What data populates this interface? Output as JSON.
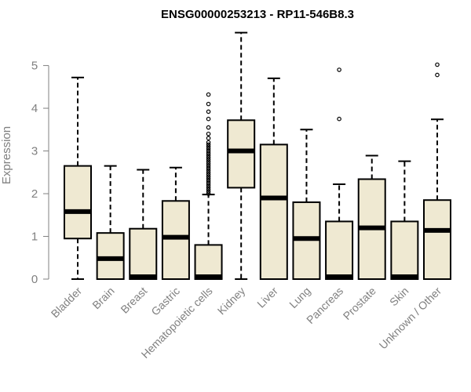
{
  "chart_data": {
    "type": "boxplot",
    "title": "ENSG00000253213 - RP11-546B8.3",
    "xlabel": "",
    "ylabel": "Expression",
    "ylim": [
      0,
      5.8
    ],
    "yticks": [
      0,
      1,
      2,
      3,
      4,
      5
    ],
    "box_fill": "#efe9d2",
    "axis_color": "#808080",
    "categories": [
      "Bladder",
      "Brain",
      "Breast",
      "Gastric",
      "Hematopoietic cells",
      "Kidney",
      "Liver",
      "Lung",
      "Pancreas",
      "Prostate",
      "Skin",
      "Unknown / Other"
    ],
    "boxes": [
      {
        "min": 0,
        "q1": 0.95,
        "median": 1.58,
        "q3": 2.65,
        "max": 4.72,
        "outliers": []
      },
      {
        "min": 0,
        "q1": 0,
        "median": 0.48,
        "q3": 1.08,
        "max": 2.65,
        "outliers": []
      },
      {
        "min": 0,
        "q1": 0,
        "median": 0.02,
        "q3": 1.18,
        "max": 2.56,
        "outliers": []
      },
      {
        "min": 0,
        "q1": 0,
        "median": 0.98,
        "q3": 1.83,
        "max": 2.61,
        "outliers": []
      },
      {
        "min": 0,
        "q1": 0,
        "median": 0.02,
        "q3": 0.8,
        "max": 1.98,
        "outliers": [
          2.0,
          2.05,
          2.1,
          2.15,
          2.2,
          2.25,
          2.3,
          2.35,
          2.4,
          2.45,
          2.5,
          2.55,
          2.6,
          2.65,
          2.7,
          2.75,
          2.8,
          2.85,
          2.9,
          2.95,
          3.0,
          3.05,
          3.1,
          3.15,
          3.2,
          3.3,
          3.4,
          3.55,
          3.75,
          3.92,
          4.1,
          4.32
        ]
      },
      {
        "min": 0,
        "q1": 2.14,
        "median": 3.0,
        "q3": 3.72,
        "max": 5.77,
        "outliers": []
      },
      {
        "min": 0,
        "q1": 0,
        "median": 1.9,
        "q3": 3.15,
        "max": 4.7,
        "outliers": []
      },
      {
        "min": 0,
        "q1": 0,
        "median": 0.95,
        "q3": 1.8,
        "max": 3.5,
        "outliers": []
      },
      {
        "min": 0,
        "q1": 0,
        "median": 0.02,
        "q3": 1.35,
        "max": 2.22,
        "outliers": [
          3.75,
          4.9
        ]
      },
      {
        "min": 0,
        "q1": 0,
        "median": 1.2,
        "q3": 2.34,
        "max": 2.89,
        "outliers": []
      },
      {
        "min": 0,
        "q1": 0,
        "median": 0.02,
        "q3": 1.35,
        "max": 2.76,
        "outliers": []
      },
      {
        "min": 0,
        "q1": 0,
        "median": 1.14,
        "q3": 1.85,
        "max": 3.74,
        "outliers": [
          4.78,
          5.02
        ]
      }
    ]
  }
}
